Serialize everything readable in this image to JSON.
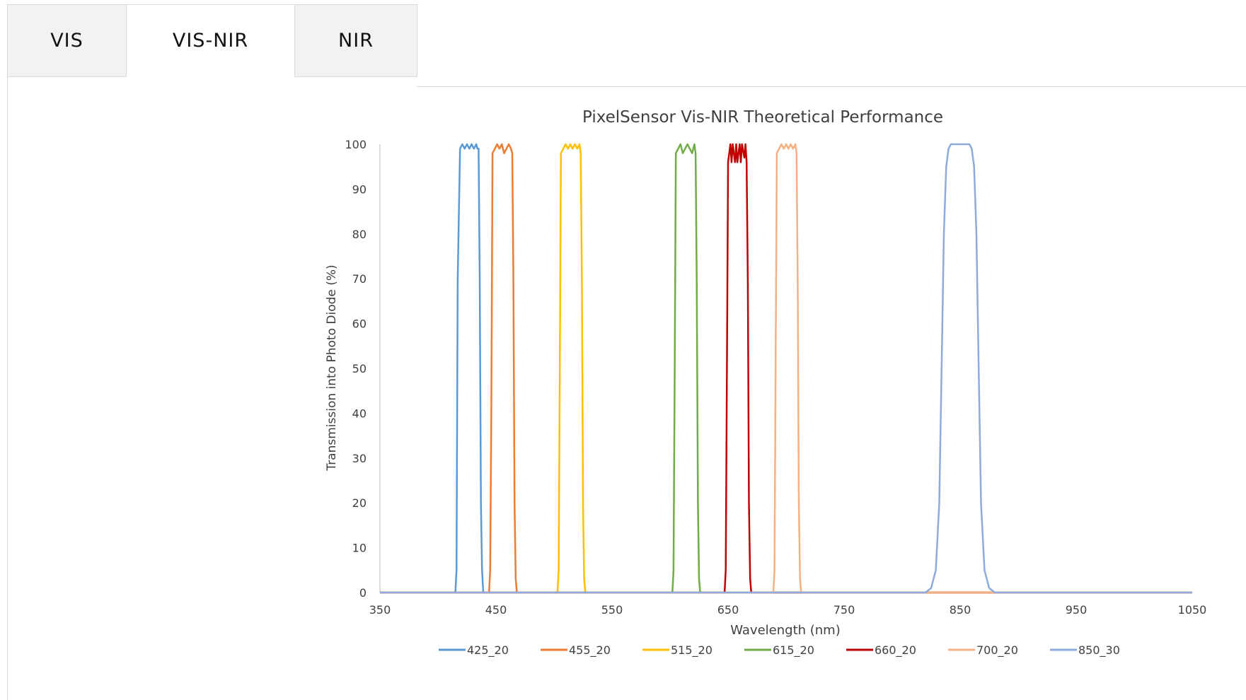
{
  "tabs": [
    {
      "label": "VIS",
      "active": false
    },
    {
      "label": "VIS-NIR",
      "active": true
    },
    {
      "label": "NIR",
      "active": false
    }
  ],
  "colors": {
    "tab_inactive_bg": "#f2f2f2",
    "tab_border": "#d9d9d9"
  },
  "chart_data": {
    "type": "line",
    "title": "PixelSensor Vis-NIR Theoretical Performance",
    "xlabel": "Wavelength (nm)",
    "ylabel": "Transmission into Photo Diode (%)",
    "xlim": [
      350,
      1050
    ],
    "ylim": [
      0,
      100
    ],
    "xticks": [
      350,
      450,
      550,
      650,
      750,
      850,
      950,
      1050
    ],
    "yticks": [
      0,
      10,
      20,
      30,
      40,
      50,
      60,
      70,
      80,
      90,
      100
    ],
    "grid": false,
    "legend_position": "bottom",
    "series": [
      {
        "name": "425_20",
        "color": "#5b9bd5",
        "x": [
          350,
          415,
          416,
          417,
          419,
          421,
          423,
          425,
          427,
          429,
          431,
          433,
          434,
          435,
          436,
          437,
          438,
          439,
          1050
        ],
        "y": [
          0,
          0,
          5,
          70,
          99,
          100,
          99,
          100,
          99,
          100,
          99,
          100,
          99,
          99,
          70,
          20,
          5,
          0,
          0
        ]
      },
      {
        "name": "455_20",
        "color": "#ed7d31",
        "x": [
          350,
          444,
          445,
          446,
          447,
          449,
          451,
          453,
          455,
          457,
          459,
          461,
          463,
          464,
          465,
          466,
          467,
          468,
          1050
        ],
        "y": [
          0,
          0,
          5,
          40,
          98,
          99,
          100,
          99,
          100,
          98,
          99,
          100,
          99,
          98,
          70,
          20,
          3,
          0,
          0
        ]
      },
      {
        "name": "515_20",
        "color": "#ffc000",
        "x": [
          350,
          503,
          504,
          505,
          506,
          508,
          510,
          512,
          514,
          516,
          518,
          520,
          522,
          523,
          524,
          525,
          526,
          527,
          1050
        ],
        "y": [
          0,
          0,
          5,
          50,
          98,
          99,
          100,
          99,
          100,
          99,
          100,
          99,
          100,
          98,
          70,
          20,
          3,
          0,
          0
        ]
      },
      {
        "name": "615_20",
        "color": "#70ad47",
        "x": [
          350,
          602,
          603,
          604,
          605,
          607,
          609,
          611,
          613,
          615,
          617,
          619,
          621,
          622,
          623,
          624,
          625,
          626,
          1050
        ],
        "y": [
          0,
          0,
          5,
          50,
          98,
          99,
          100,
          98,
          99,
          100,
          99,
          98,
          100,
          98,
          70,
          20,
          3,
          0,
          0
        ]
      },
      {
        "name": "660_20",
        "color": "#c00000",
        "x": [
          350,
          647,
          648,
          649,
          650,
          652,
          653,
          654,
          656,
          657,
          658,
          660,
          661,
          662,
          664,
          665,
          666,
          667,
          668,
          669,
          670,
          1050
        ],
        "y": [
          0,
          0,
          5,
          50,
          96,
          100,
          96,
          100,
          96,
          100,
          96,
          100,
          96,
          100,
          97,
          100,
          96,
          70,
          20,
          3,
          0,
          0
        ]
      },
      {
        "name": "700_20",
        "color": "#f4b183",
        "x": [
          350,
          689,
          690,
          691,
          692,
          694,
          696,
          698,
          700,
          702,
          704,
          706,
          708,
          709,
          710,
          711,
          712,
          713,
          1050
        ],
        "y": [
          0,
          0,
          5,
          50,
          98,
          99,
          100,
          99,
          100,
          99,
          100,
          99,
          100,
          98,
          70,
          20,
          3,
          0,
          0
        ]
      },
      {
        "name": "850_30",
        "color": "#8faadc",
        "x": [
          350,
          820,
          825,
          829,
          832,
          834,
          836,
          838,
          840,
          842,
          845,
          850,
          855,
          858,
          860,
          862,
          864,
          866,
          868,
          871,
          875,
          880,
          1050
        ],
        "y": [
          0,
          0,
          1,
          5,
          20,
          50,
          80,
          95,
          99,
          100,
          100,
          100,
          100,
          100,
          99,
          95,
          80,
          50,
          20,
          5,
          1,
          0,
          0
        ]
      }
    ]
  }
}
